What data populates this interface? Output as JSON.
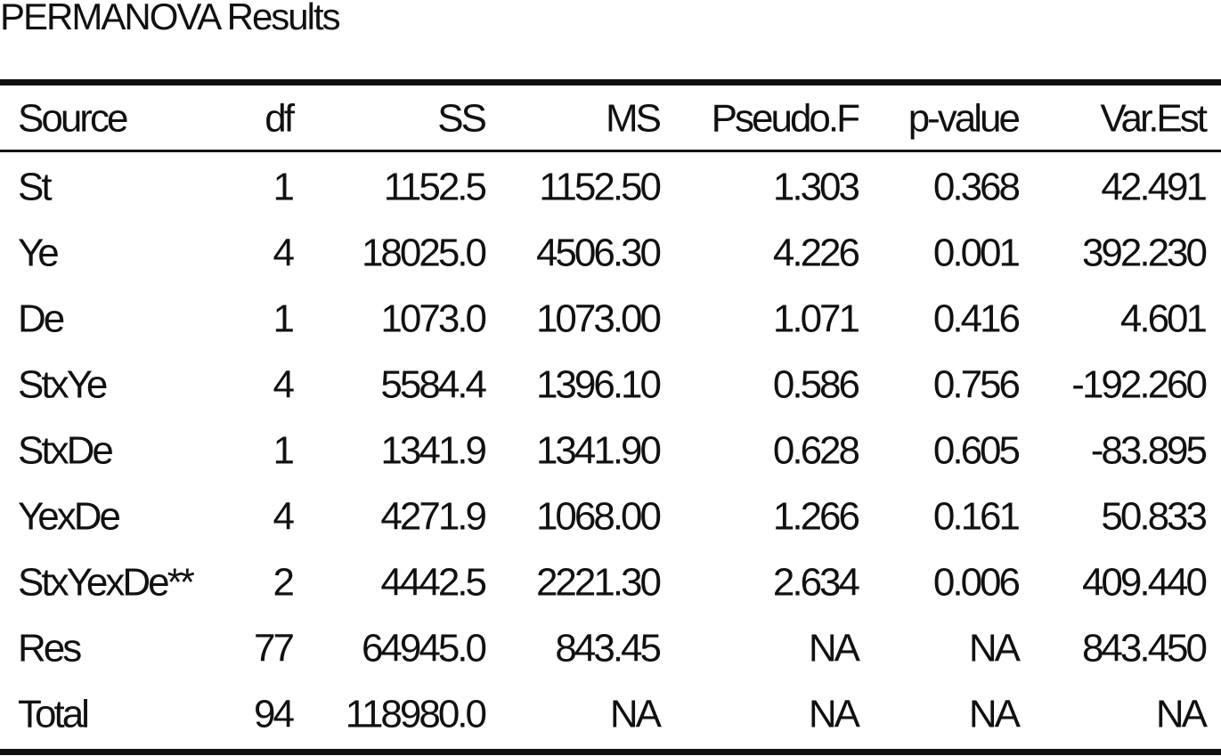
{
  "title": "PERMANOVA Results",
  "table": {
    "header": [
      "Source",
      "df",
      "SS",
      "MS",
      "Pseudo.F",
      "p-value",
      "Var.Est"
    ],
    "rows": [
      [
        "St",
        "1",
        "1152.5",
        "1152.50",
        "1.303",
        "0.368",
        "42.491"
      ],
      [
        "Ye",
        "4",
        "18025.0",
        "4506.30",
        "4.226",
        "0.001",
        "392.230"
      ],
      [
        "De",
        "1",
        "1073.0",
        "1073.00",
        "1.071",
        "0.416",
        "4.601"
      ],
      [
        "StxYe",
        "4",
        "5584.4",
        "1396.10",
        "0.586",
        "0.756",
        "-192.260"
      ],
      [
        "StxDe",
        "1",
        "1341.9",
        "1341.90",
        "0.628",
        "0.605",
        "-83.895"
      ],
      [
        "YexDe",
        "4",
        "4271.9",
        "1068.00",
        "1.266",
        "0.161",
        "50.833"
      ],
      [
        "StxYexDe**",
        "2",
        "4442.5",
        "2221.30",
        "2.634",
        "0.006",
        "409.440"
      ],
      [
        "Res",
        "77",
        "64945.0",
        "843.45",
        "NA",
        "NA",
        "843.450"
      ],
      [
        "Total",
        "94",
        "118980.0",
        "NA",
        "NA",
        "NA",
        "NA"
      ]
    ]
  }
}
